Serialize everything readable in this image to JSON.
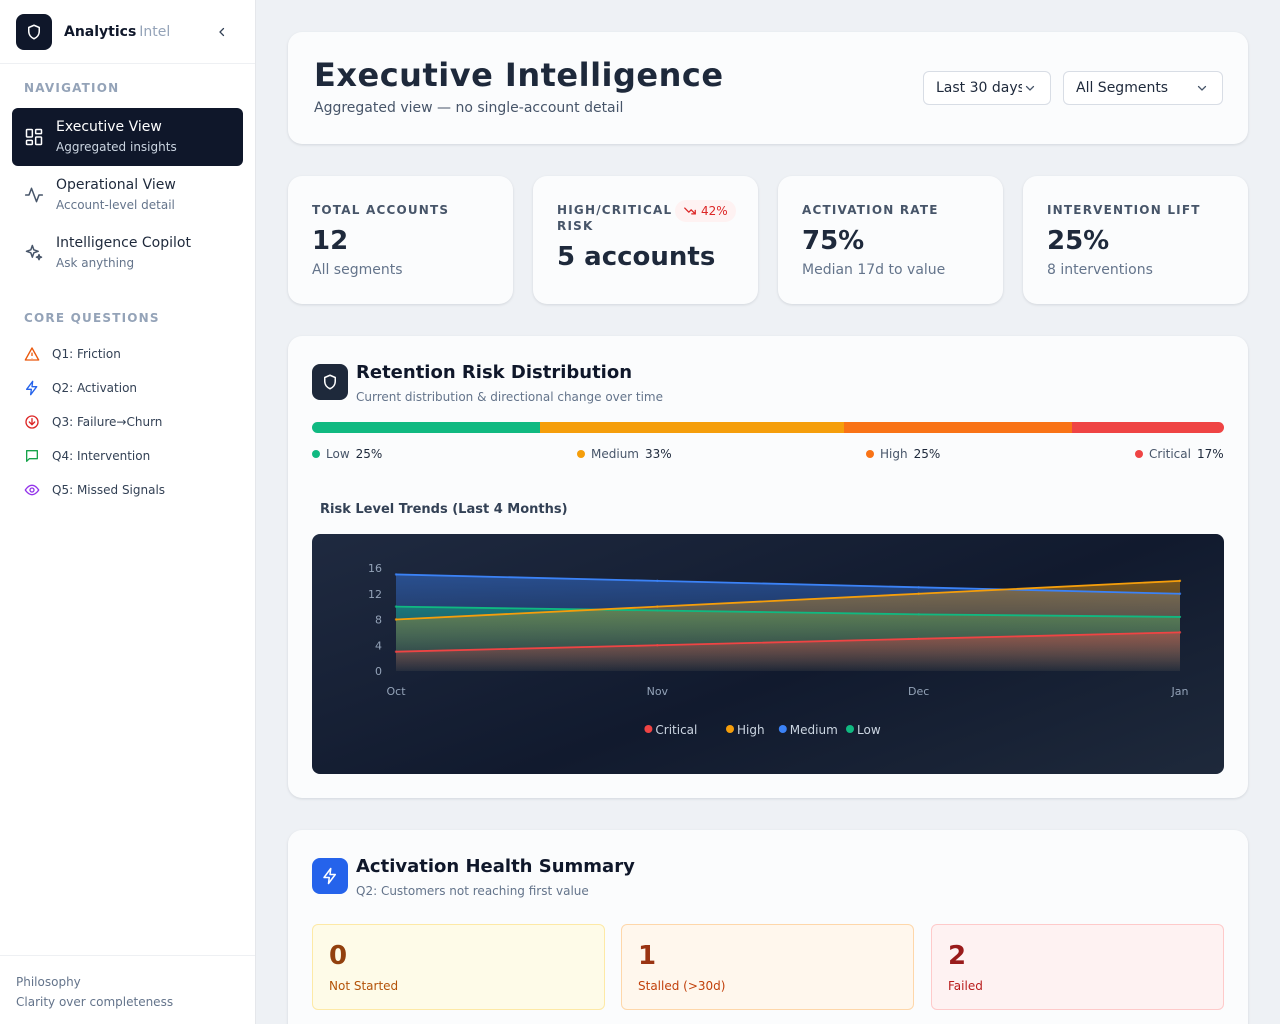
{
  "app": {
    "name": "Analytics",
    "name_suffix": "Intel",
    "logo_icon": "shield-icon",
    "collapse_icon": "chevron-left-icon"
  },
  "sidebar": {
    "nav_heading": "NAVIGATION",
    "nav_items": [
      {
        "title": "Executive View",
        "subtitle": "Aggregated insights",
        "icon": "dashboard-grid-icon",
        "active": true
      },
      {
        "title": "Operational View",
        "subtitle": "Account-level detail",
        "icon": "activity-pulse-icon",
        "active": false
      },
      {
        "title": "Intelligence Copilot",
        "subtitle": "Ask anything",
        "icon": "sparkles-icon",
        "active": false
      }
    ],
    "questions_heading": "CORE QUESTIONS",
    "questions": [
      {
        "label": "Q1: Friction",
        "icon": "warning-triangle-icon",
        "color": "#ea580c"
      },
      {
        "label": "Q2: Activation",
        "icon": "lightning-icon",
        "color": "#2563eb"
      },
      {
        "label": "Q3: Failure→Churn",
        "icon": "arrow-down-circle-icon",
        "color": "#dc2626"
      },
      {
        "label": "Q4: Intervention",
        "icon": "message-square-icon",
        "color": "#16a34a"
      },
      {
        "label": "Q5: Missed Signals",
        "icon": "eye-icon",
        "color": "#9333ea"
      }
    ],
    "footer": {
      "label": "Philosophy",
      "text": "Clarity over completeness"
    }
  },
  "header": {
    "title": "Executive Intelligence",
    "subtitle": "Aggregated view — no single-account detail",
    "period_select": "Last 30 days",
    "segment_select": "All Segments"
  },
  "kpis": [
    {
      "label": "TOTAL ACCOUNTS",
      "value": "12",
      "foot": "All segments"
    },
    {
      "label": "HIGH/CRITICAL RISK",
      "value": "5 accounts",
      "badge": "42%",
      "badge_icon": "trending-down-icon"
    },
    {
      "label": "ACTIVATION RATE",
      "value": "75%",
      "foot": "Median 17d to value"
    },
    {
      "label": "INTERVENTION LIFT",
      "value": "25%",
      "foot": "8 interventions"
    }
  ],
  "risk": {
    "title": "Retention Risk Distribution",
    "subtitle": "Current distribution & directional change over time",
    "icon": "shield-icon",
    "distribution": [
      {
        "label": "Low",
        "pct_label": "25%",
        "share": 25,
        "color": "#10b981"
      },
      {
        "label": "Medium",
        "pct_label": "33%",
        "share": 33.3,
        "color": "#f59e0b"
      },
      {
        "label": "High",
        "pct_label": "25%",
        "share": 25,
        "color": "#f97316"
      },
      {
        "label": "Critical",
        "pct_label": "17%",
        "share": 16.7,
        "color": "#ef4444"
      }
    ],
    "trend_title": "Risk Level Trends (Last 4 Months)"
  },
  "chart_data": {
    "type": "area",
    "title": "Risk Level Trends (Last 4 Months)",
    "xlabel": "",
    "ylabel": "",
    "categories": [
      "Oct",
      "Nov",
      "Dec",
      "Jan"
    ],
    "ylim": [
      0,
      16
    ],
    "yticks": [
      0,
      4,
      8,
      12,
      16
    ],
    "grid": false,
    "legend_position": "bottom",
    "series": [
      {
        "name": "Critical",
        "values": [
          3,
          4,
          5,
          6
        ],
        "color": "#ef4444"
      },
      {
        "name": "High",
        "values": [
          8,
          10,
          12,
          14
        ],
        "color": "#f59e0b"
      },
      {
        "name": "Medium",
        "values": [
          15,
          14,
          13,
          12
        ],
        "color": "#3b82f6"
      },
      {
        "name": "Low",
        "values": [
          10,
          9.4,
          8.8,
          8.4
        ],
        "color": "#10b981"
      }
    ]
  },
  "activation": {
    "title": "Activation Health Summary",
    "subtitle": "Q2: Customers not reaching first value",
    "icon": "lightning-icon",
    "tiles": [
      {
        "value": "0",
        "label": "Not Started",
        "bg": "#fefbe8",
        "border": "#fde9a6",
        "num_color": "#92400e",
        "label_color": "#b45309"
      },
      {
        "value": "1",
        "label": "Stalled (>30d)",
        "bg": "#fff7ed",
        "border": "#fed7aa",
        "num_color": "#9a3412",
        "label_color": "#c2410c"
      },
      {
        "value": "2",
        "label": "Failed",
        "bg": "#fef2f2",
        "border": "#fecaca",
        "num_color": "#991b1b",
        "label_color": "#b91c1c"
      }
    ]
  }
}
